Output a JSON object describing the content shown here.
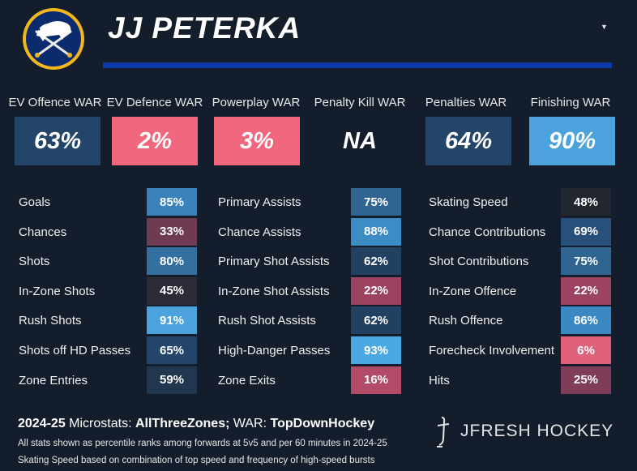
{
  "header": {
    "player_name": "JJ PETERKA",
    "logo_icon": "buffalo-sabres-logo",
    "accent_bar_color": "#0d3aa8"
  },
  "war": [
    {
      "label": "EV Offence WAR",
      "value": "63%",
      "color": "#23456a"
    },
    {
      "label": "EV Defence WAR",
      "value": "2%",
      "color": "#f0677e"
    },
    {
      "label": "Powerplay WAR",
      "value": "3%",
      "color": "#f0677e"
    },
    {
      "label": "Penalty Kill WAR",
      "value": "NA",
      "color": "#141d2b"
    },
    {
      "label": "Penalties WAR",
      "value": "64%",
      "color": "#23456a"
    },
    {
      "label": "Finishing WAR",
      "value": "90%",
      "color": "#4ca2dc"
    }
  ],
  "microstats": [
    {
      "items": [
        {
          "label": "Goals",
          "value": "85%",
          "color": "#3b82ba"
        },
        {
          "label": "Chances",
          "value": "33%",
          "color": "#6e3b53"
        },
        {
          "label": "Shots",
          "value": "80%",
          "color": "#336f9f"
        },
        {
          "label": "In-Zone Shots",
          "value": "45%",
          "color": "#2b2c38"
        },
        {
          "label": "Rush Shots",
          "value": "91%",
          "color": "#4ca2dc"
        },
        {
          "label": "Shots off HD Passes",
          "value": "65%",
          "color": "#23456a"
        },
        {
          "label": "Zone Entries",
          "value": "59%",
          "color": "#21374f"
        }
      ]
    },
    {
      "items": [
        {
          "label": "Primary Assists",
          "value": "75%",
          "color": "#2f6590"
        },
        {
          "label": "Chance Assists",
          "value": "88%",
          "color": "#3e8cc6"
        },
        {
          "label": "Primary Shot Assists",
          "value": "62%",
          "color": "#22405f"
        },
        {
          "label": "In-Zone Shot Assists",
          "value": "22%",
          "color": "#9b4360"
        },
        {
          "label": "Rush Shot Assists",
          "value": "62%",
          "color": "#22405f"
        },
        {
          "label": "High-Danger Passes",
          "value": "93%",
          "color": "#4ca8e3"
        },
        {
          "label": "Zone Exits",
          "value": "16%",
          "color": "#b24a68"
        }
      ]
    },
    {
      "items": [
        {
          "label": "Skating Speed",
          "value": "48%",
          "color": "#22262f"
        },
        {
          "label": "Chance Contributions",
          "value": "69%",
          "color": "#27507b"
        },
        {
          "label": "Shot Contributions",
          "value": "75%",
          "color": "#2f6590"
        },
        {
          "label": "In-Zone Offence",
          "value": "22%",
          "color": "#9b4360"
        },
        {
          "label": "Rush Offence",
          "value": "86%",
          "color": "#3b88c2"
        },
        {
          "label": "Forecheck Involvement",
          "value": "6%",
          "color": "#e0617a"
        },
        {
          "label": "Hits",
          "value": "25%",
          "color": "#7e3d58"
        }
      ]
    }
  ],
  "footer": {
    "title_prefix": "2024-25 ",
    "title_micro_label": "Microstats: ",
    "title_micro_source": "AllThreeZones; ",
    "title_war_label": "WAR: ",
    "title_war_source": "TopDownHockey",
    "note_1": "All stats shown as percentile ranks among forwards at 5v5 and per 60 minutes in 2024-25",
    "note_2": "Skating Speed based on combination of top speed and frequency of high-speed bursts",
    "brand": "JFRESH HOCKEY",
    "brand_icon": "jfresh-skate-logo"
  }
}
